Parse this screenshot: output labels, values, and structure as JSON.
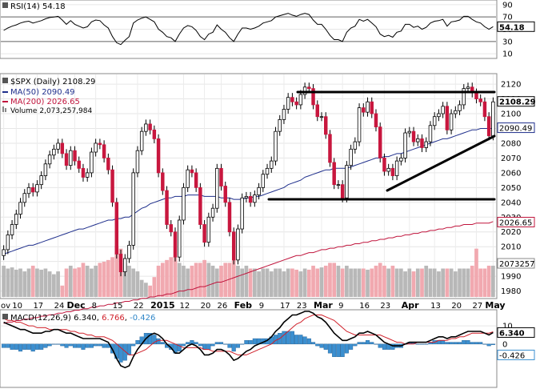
{
  "chart_data": {
    "type": "candlestick",
    "symbol_label": "$SPX (Daily)",
    "last_close": 2108.29,
    "legend": {
      "ma50": {
        "label": "MA(50)",
        "value": "2090.49",
        "color": "#1f2f8c"
      },
      "ma200": {
        "label": "MA(200)",
        "value": "2026.65",
        "color": "#c0143c"
      },
      "volume": {
        "label": "Volume",
        "value": "2,073,257,984"
      }
    },
    "price_axis": {
      "ticks": [
        2120,
        2110,
        2100,
        2090,
        2080,
        2070,
        2060,
        2050,
        2040,
        2030,
        2020,
        2010,
        2000,
        1990,
        1980
      ],
      "ylim": [
        1976,
        2126
      ],
      "badges": {
        "last": "2108.29",
        "ma50": "2090.49",
        "ma200": "2026.65",
        "volume": "2073257"
      }
    },
    "x_labels": [
      {
        "text": "ov",
        "i": 0
      },
      {
        "text": "10",
        "i": 3
      },
      {
        "text": "17",
        "i": 8
      },
      {
        "text": "24",
        "i": 13
      },
      {
        "text": "Dec",
        "i": 17,
        "bold": true
      },
      {
        "text": "8",
        "i": 22
      },
      {
        "text": "15",
        "i": 27
      },
      {
        "text": "22",
        "i": 32
      },
      {
        "text": "2015",
        "i": 37,
        "bold": true
      },
      {
        "text": "12",
        "i": 43
      },
      {
        "text": "20",
        "i": 48
      },
      {
        "text": "26",
        "i": 52
      },
      {
        "text": "Feb",
        "i": 57,
        "bold": true
      },
      {
        "text": "9",
        "i": 62
      },
      {
        "text": "17",
        "i": 67
      },
      {
        "text": "23",
        "i": 71
      },
      {
        "text": "Mar",
        "i": 76,
        "bold": true
      },
      {
        "text": "9",
        "i": 81
      },
      {
        "text": "16",
        "i": 86
      },
      {
        "text": "23",
        "i": 91
      },
      {
        "text": "Apr",
        "i": 97,
        "bold": true
      },
      {
        "text": "13",
        "i": 103
      },
      {
        "text": "20",
        "i": 108
      },
      {
        "text": "27",
        "i": 113
      },
      {
        "text": "May",
        "i": 117,
        "bold": true
      }
    ],
    "closes": [
      2008,
      2018,
      2025,
      2032,
      2040,
      2046,
      2050,
      2047,
      2052,
      2058,
      2066,
      2072,
      2076,
      2080,
      2073,
      2065,
      2075,
      2068,
      2063,
      2057,
      2060,
      2074,
      2080,
      2079,
      2070,
      2062,
      2040,
      2005,
      1993,
      2002,
      2011,
      2060,
      2075,
      2088,
      2093,
      2089,
      2083,
      2060,
      2048,
      2025,
      2020,
      2003,
      2028,
      2050,
      2062,
      2060,
      2050,
      2025,
      2013,
      2030,
      2036,
      2063,
      2051,
      2040,
      2020,
      2001,
      2022,
      2043,
      2044,
      2040,
      2045,
      2050,
      2059,
      2063,
      2068,
      2088,
      2096,
      2103,
      2111,
      2108,
      2106,
      2113,
      2118,
      2117,
      2106,
      2098,
      2098,
      2086,
      2067,
      2052,
      2052,
      2043,
      2065,
      2076,
      2081,
      2104,
      2101,
      2108,
      2100,
      2091,
      2070,
      2061,
      2063,
      2058,
      2068,
      2070,
      2087,
      2088,
      2081,
      2083,
      2077,
      2081,
      2092,
      2098,
      2100,
      2105,
      2089,
      2100,
      2102,
      2106,
      2117,
      2118,
      2114,
      2110,
      2108,
      2098,
      2085,
      2108
    ],
    "ohlc_note": "close series above; each candle opens at prior close",
    "ma50": [
      2005,
      2006,
      2007,
      2008,
      2009,
      2010,
      2011,
      2011,
      2012,
      2013,
      2014,
      2015,
      2016,
      2017,
      2018,
      2019,
      2020,
      2021,
      2022,
      2022,
      2023,
      2024,
      2025,
      2026,
      2027,
      2028,
      2028,
      2029,
      2029,
      2030,
      2030,
      2032,
      2034,
      2036,
      2037,
      2039,
      2040,
      2041,
      2042,
      2043,
      2043,
      2044,
      2044,
      2044,
      2045,
      2045,
      2045,
      2045,
      2044,
      2044,
      2044,
      2044,
      2043,
      2043,
      2043,
      2042,
      2042,
      2042,
      2043,
      2043,
      2044,
      2044,
      2045,
      2046,
      2047,
      2048,
      2049,
      2050,
      2052,
      2053,
      2054,
      2055,
      2057,
      2058,
      2059,
      2060,
      2061,
      2062,
      2062,
      2063,
      2063,
      2063,
      2063,
      2064,
      2065,
      2066,
      2067,
      2068,
      2069,
      2070,
      2070,
      2071,
      2071,
      2072,
      2073,
      2073,
      2074,
      2075,
      2076,
      2077,
      2078,
      2079,
      2080,
      2081,
      2082,
      2083,
      2083,
      2084,
      2085,
      2086,
      2087,
      2088,
      2089,
      2089,
      2090,
      2090,
      2090,
      2090
    ],
    "ma200": [
      1958,
      1959,
      1959,
      1960,
      1960,
      1961,
      1961,
      1962,
      1962,
      1963,
      1963,
      1964,
      1964,
      1965,
      1965,
      1966,
      1966,
      1967,
      1967,
      1968,
      1968,
      1969,
      1969,
      1970,
      1970,
      1971,
      1971,
      1972,
      1972,
      1973,
      1973,
      1974,
      1974,
      1975,
      1975,
      1976,
      1976,
      1977,
      1977,
      1978,
      1978,
      1979,
      1980,
      1980,
      1981,
      1981,
      1982,
      1983,
      1983,
      1984,
      1985,
      1986,
      1986,
      1987,
      1988,
      1989,
      1990,
      1991,
      1992,
      1993,
      1994,
      1995,
      1996,
      1997,
      1998,
      1999,
      2000,
      2001,
      2002,
      2003,
      2004,
      2004,
      2005,
      2006,
      2006,
      2007,
      2008,
      2008,
      2009,
      2009,
      2010,
      2010,
      2011,
      2011,
      2012,
      2012,
      2013,
      2013,
      2014,
      2014,
      2015,
      2015,
      2016,
      2016,
      2017,
      2017,
      2018,
      2018,
      2019,
      2019,
      2020,
      2020,
      2021,
      2021,
      2022,
      2022,
      2023,
      2023,
      2024,
      2024,
      2025,
      2025,
      2025,
      2026,
      2026,
      2026,
      2026,
      2027
    ],
    "volume_relative": [
      0.55,
      0.5,
      0.52,
      0.48,
      0.5,
      0.45,
      0.5,
      0.55,
      0.5,
      0.48,
      0.5,
      0.45,
      0.4,
      0.45,
      0.2,
      0.5,
      0.55,
      0.5,
      0.52,
      0.6,
      0.55,
      0.5,
      0.55,
      0.6,
      0.62,
      0.65,
      0.7,
      0.9,
      0.85,
      0.6,
      0.55,
      0.5,
      0.45,
      0.3,
      0.25,
      0.2,
      0.35,
      0.55,
      0.6,
      0.65,
      0.7,
      0.7,
      0.6,
      0.55,
      0.5,
      0.55,
      0.6,
      0.6,
      0.65,
      0.6,
      0.55,
      0.5,
      0.55,
      0.6,
      0.6,
      0.65,
      0.55,
      0.5,
      0.55,
      0.5,
      0.5,
      0.45,
      0.5,
      0.5,
      0.45,
      0.5,
      0.5,
      0.45,
      0.5,
      0.5,
      0.48,
      0.45,
      0.5,
      0.48,
      0.55,
      0.5,
      0.52,
      0.55,
      0.6,
      0.6,
      0.55,
      0.5,
      0.55,
      0.5,
      0.5,
      0.5,
      0.5,
      0.48,
      0.5,
      0.55,
      0.6,
      0.55,
      0.5,
      0.55,
      0.5,
      0.5,
      0.45,
      0.5,
      0.45,
      0.5,
      0.5,
      0.55,
      0.5,
      0.5,
      0.45,
      0.5,
      0.5,
      0.5,
      0.45,
      0.5,
      0.5,
      0.5,
      0.55,
      0.85,
      0.5,
      0.5,
      0.55,
      0.55
    ],
    "rsi_panel": {
      "label": "RSI(14)",
      "value": "54.18",
      "ticks": [
        90,
        70,
        50,
        30,
        10
      ],
      "ylim": [
        5,
        95
      ],
      "reference_lines": [
        70,
        30
      ],
      "values": [
        48,
        52,
        55,
        57,
        60,
        62,
        63,
        60,
        62,
        64,
        67,
        69,
        70,
        71,
        65,
        58,
        64,
        58,
        55,
        52,
        54,
        62,
        65,
        64,
        57,
        52,
        38,
        28,
        25,
        32,
        38,
        60,
        65,
        68,
        70,
        66,
        62,
        50,
        45,
        38,
        36,
        30,
        42,
        52,
        56,
        54,
        48,
        38,
        33,
        42,
        45,
        57,
        50,
        45,
        36,
        30,
        42,
        52,
        52,
        50,
        52,
        55,
        60,
        62,
        64,
        70,
        72,
        74,
        76,
        73,
        71,
        74,
        76,
        74,
        65,
        58,
        58,
        50,
        40,
        33,
        33,
        30,
        45,
        52,
        55,
        66,
        63,
        66,
        60,
        54,
        42,
        38,
        40,
        37,
        45,
        47,
        58,
        58,
        53,
        55,
        50,
        53,
        60,
        63,
        64,
        66,
        55,
        62,
        63,
        65,
        71,
        71,
        66,
        62,
        60,
        54,
        50,
        54.18
      ],
      "badge": "54.18"
    },
    "macd_panel": {
      "label": "MACD(12,26,9)",
      "macd": "6.340",
      "signal": "6.766",
      "hist": "-0.426",
      "ticks": [
        10,
        0
      ],
      "ylim": [
        -23,
        18
      ],
      "badges": {
        "macd": "6.340",
        "hist": "-0.426"
      },
      "macd_values": [
        12,
        11,
        10,
        9,
        8,
        8,
        7,
        6,
        6,
        6,
        7,
        7,
        8,
        8,
        7,
        6,
        6,
        5,
        4,
        3,
        3,
        3,
        3,
        3,
        2,
        1,
        -3,
        -8,
        -12,
        -13,
        -12,
        -7,
        -3,
        0,
        3,
        5,
        6,
        5,
        3,
        0,
        -2,
        -5,
        -5,
        -3,
        -1,
        0,
        -1,
        -3,
        -6,
        -6,
        -5,
        -3,
        -3,
        -4,
        -6,
        -9,
        -8,
        -6,
        -4,
        -3,
        -1,
        0,
        1,
        2,
        4,
        7,
        9,
        12,
        14,
        16,
        16,
        17,
        18,
        18,
        17,
        15,
        14,
        12,
        9,
        6,
        4,
        2,
        2,
        3,
        4,
        6,
        6,
        7,
        6,
        5,
        3,
        1,
        0,
        -1,
        -1,
        -1,
        0,
        1,
        1,
        1,
        1,
        1,
        2,
        3,
        4,
        4,
        3,
        4,
        4,
        5,
        6,
        7,
        7,
        7,
        7,
        6,
        5,
        6.34
      ],
      "signal_values": [
        14,
        13,
        13,
        12,
        12,
        11,
        10,
        10,
        9,
        9,
        9,
        8,
        8,
        8,
        8,
        8,
        7,
        7,
        6,
        6,
        5,
        5,
        4,
        4,
        4,
        3,
        2,
        0,
        -2,
        -4,
        -6,
        -6,
        -5,
        -4,
        -3,
        -1,
        1,
        2,
        2,
        2,
        1,
        0,
        -1,
        -2,
        -2,
        -2,
        -2,
        -2,
        -3,
        -3,
        -4,
        -4,
        -4,
        -4,
        -4,
        -5,
        -6,
        -6,
        -6,
        -5,
        -4,
        -3,
        -2,
        -1,
        0,
        2,
        3,
        5,
        7,
        9,
        11,
        12,
        14,
        15,
        16,
        16,
        16,
        15,
        14,
        13,
        11,
        9,
        7,
        6,
        5,
        5,
        5,
        5,
        5,
        5,
        5,
        4,
        3,
        2,
        1,
        1,
        0,
        0,
        0,
        1,
        1,
        1,
        1,
        1,
        2,
        2,
        2,
        3,
        3,
        4,
        4,
        5,
        6,
        6,
        6,
        6,
        6,
        6.766
      ]
    }
  }
}
